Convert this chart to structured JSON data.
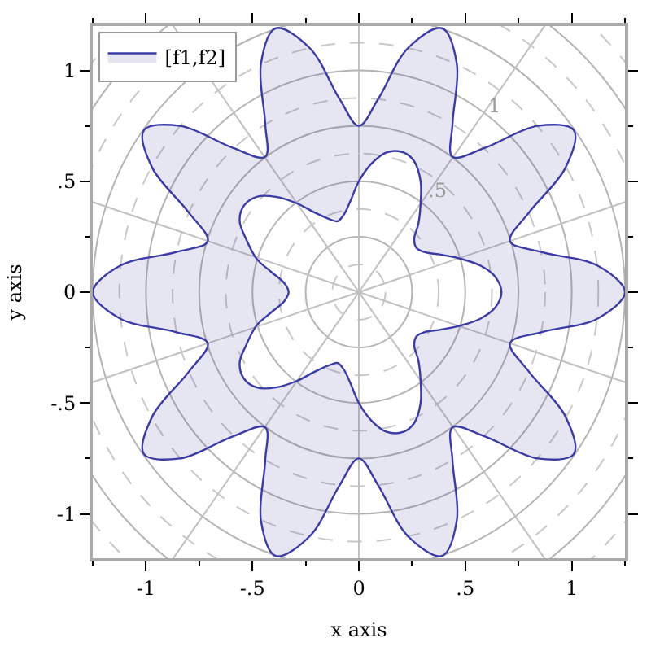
{
  "chart_data": {
    "type": "area",
    "xlabel": "x axis",
    "ylabel": "y axis",
    "series": [
      {
        "name": "[f1,f2]",
        "color": "#3b3ba6",
        "x": [
          1.25,
          1.12,
          0.86,
          0.71,
          0.8,
          0.97,
          1.01,
          0.84,
          0.59,
          0.44,
          0.44,
          0.46,
          0.39,
          0.23,
          0.09,
          0,
          -0.09,
          -0.23,
          -0.39,
          -0.46,
          -0.44,
          -0.44,
          -0.59,
          -0.84,
          -1.01,
          -0.97,
          -0.8,
          -0.71,
          -0.86,
          -1.12,
          -1.25,
          -1.12,
          -0.86,
          -0.71,
          -0.8,
          -0.97,
          -1.01,
          -0.84,
          -0.59,
          -0.44,
          -0.44,
          -0.46,
          -0.39,
          -0.23,
          -0.09,
          0,
          0.09,
          0.23,
          0.39,
          0.46,
          0.44,
          0.44,
          0.59,
          0.84,
          1.01,
          0.97,
          0.8,
          0.71,
          0.86,
          1.12,
          1.25
        ],
        "values": [
          0,
          0.12,
          0.18,
          0.23,
          0.36,
          0.56,
          0.73,
          0.75,
          0.65,
          0.61,
          0.76,
          1.03,
          1.19,
          1.1,
          0.87,
          0.75,
          0.87,
          1.1,
          1.19,
          1.03,
          0.76,
          0.61,
          0.65,
          0.75,
          0.73,
          0.56,
          0.36,
          0.23,
          0.18,
          0.12,
          0,
          -0.12,
          -0.18,
          -0.23,
          -0.36,
          -0.56,
          -0.73,
          -0.75,
          -0.65,
          -0.61,
          -0.76,
          -1.03,
          -1.19,
          -1.1,
          -0.87,
          -0.75,
          -0.87,
          -1.1,
          -1.19,
          -1.03,
          -0.76,
          -0.61,
          -0.65,
          -0.75,
          -0.73,
          -0.56,
          -0.36,
          -0.23,
          -0.18,
          -0.12,
          0
        ]
      },
      {
        "color": "#3b3ba6",
        "x": [
          0.67,
          0.64,
          0.57,
          0.48,
          0.38,
          0.31,
          0.27,
          0.26,
          0.28,
          0.29,
          0.29,
          0.26,
          0.21,
          0.13,
          0.06,
          0,
          -0.04,
          -0.07,
          -0.1,
          -0.14,
          -0.21,
          -0.29,
          -0.39,
          -0.48,
          -0.54,
          -0.56,
          -0.53,
          -0.48,
          -0.41,
          -0.35,
          -0.33,
          -0.35,
          -0.41,
          -0.48,
          -0.53,
          -0.56,
          -0.54,
          -0.48,
          -0.39,
          -0.29,
          -0.21,
          -0.14,
          -0.1,
          -0.07,
          -0.04,
          0,
          0.06,
          0.13,
          0.21,
          0.26,
          0.29,
          0.29,
          0.28,
          0.26,
          0.27,
          0.31,
          0.38,
          0.48,
          0.57,
          0.64,
          0.67
        ],
        "values": [
          0,
          0.07,
          0.12,
          0.15,
          0.17,
          0.18,
          0.2,
          0.24,
          0.31,
          0.4,
          0.5,
          0.59,
          0.63,
          0.63,
          0.58,
          0.5,
          0.41,
          0.35,
          0.32,
          0.33,
          0.36,
          0.4,
          0.43,
          0.43,
          0.39,
          0.32,
          0.24,
          0.15,
          0.09,
          0.04,
          0,
          -0.04,
          -0.09,
          -0.15,
          -0.24,
          -0.32,
          -0.39,
          -0.43,
          -0.43,
          -0.4,
          -0.36,
          -0.33,
          -0.32,
          -0.35,
          -0.41,
          -0.5,
          -0.58,
          -0.63,
          -0.63,
          -0.59,
          -0.5,
          -0.4,
          -0.31,
          -0.24,
          -0.2,
          -0.18,
          -0.17,
          -0.15,
          -0.12,
          -0.07,
          0
        ]
      }
    ],
    "xlim": [
      -1.25,
      1.25
    ],
    "ylim": [
      -1.2,
      1.2
    ],
    "xticks": [
      {
        "value": -1,
        "label": "-1"
      },
      {
        "value": -0.5,
        "label": "-.5"
      },
      0,
      {
        "value": 0.5,
        "label": ".5"
      },
      1
    ],
    "yticks": [
      {
        "value": -1,
        "label": "-1"
      },
      {
        "value": -0.5,
        "label": "-.5"
      },
      0,
      {
        "value": 0.5,
        "label": ".5"
      },
      1
    ],
    "annotations": [
      "1",
      ".5"
    ],
    "legend": "top left"
  }
}
